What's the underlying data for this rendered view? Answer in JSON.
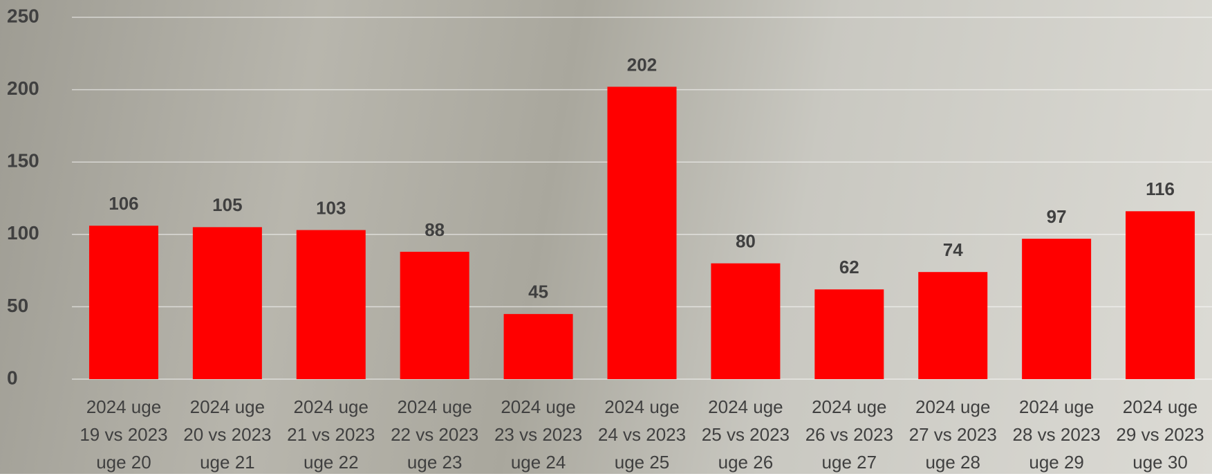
{
  "chart_data": {
    "type": "bar",
    "categories": [
      "2024 uge 19 vs 2023 uge 20",
      "2024 uge 20 vs 2023 uge 21",
      "2024 uge 21 vs 2023 uge 22",
      "2024 uge 22 vs 2023 uge 23",
      "2024 uge 23 vs 2023 uge 24",
      "2024 uge 24 vs 2023 uge 25",
      "2024 uge 25 vs 2023 uge 26",
      "2024 uge 26 vs 2023 uge 27",
      "2024 uge 27 vs 2023 uge 28",
      "2024 uge 28 vs 2023 uge 29",
      "2024 uge 29 vs 2023 uge 30"
    ],
    "values": [
      106,
      105,
      103,
      88,
      45,
      202,
      80,
      62,
      74,
      97,
      116
    ],
    "color": "#ff0000",
    "ylim": [
      0,
      250
    ],
    "yticks": [
      0,
      50,
      100,
      150,
      200,
      250
    ],
    "grid": true
  }
}
